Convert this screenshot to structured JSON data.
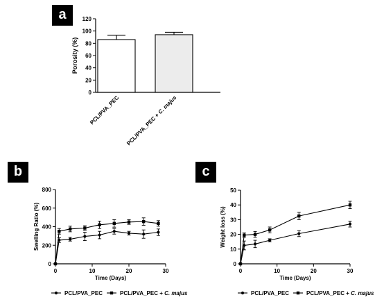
{
  "panels": {
    "a": "a",
    "b": "b",
    "c": "c"
  },
  "chart_data": [
    {
      "panel": "a",
      "type": "bar",
      "title": "",
      "xlabel": "",
      "ylabel": "Porosity (%)",
      "categories": [
        "PCL/PVA_PEC",
        "PCL/PVA_PEC + C. majus"
      ],
      "values": [
        86,
        94
      ],
      "errors": [
        7,
        4
      ],
      "bar_colors": [
        "#ffffff",
        "#ececec"
      ],
      "ylim": [
        0,
        120
      ],
      "yticks": [
        "0",
        "20",
        "40",
        "60",
        "80",
        "100",
        "120"
      ]
    },
    {
      "panel": "b",
      "type": "line",
      "title": "",
      "xlabel": "Time (Days)",
      "ylabel": "Swelling Ratio (%)",
      "xlim": [
        0,
        30
      ],
      "ylim": [
        0,
        800
      ],
      "xticks": [
        "0",
        "10",
        "20",
        "30"
      ],
      "yticks": [
        "0",
        "200",
        "400",
        "600",
        "800"
      ],
      "legend_position": "bottom",
      "series": [
        {
          "name": "PCL/PVA_PEC",
          "marker": "circle",
          "x": [
            0,
            1,
            4,
            8,
            12,
            16,
            20,
            24,
            28
          ],
          "y": [
            0,
            255,
            265,
            295,
            310,
            350,
            330,
            320,
            340
          ],
          "err": [
            0,
            25,
            20,
            45,
            40,
            30,
            20,
            45,
            35
          ]
        },
        {
          "name": "PCL/PVA_PEC + C. majus",
          "marker": "square",
          "x": [
            0,
            1,
            4,
            8,
            12,
            16,
            20,
            24,
            28
          ],
          "y": [
            0,
            350,
            375,
            385,
            420,
            435,
            450,
            455,
            435
          ],
          "err": [
            0,
            30,
            30,
            25,
            40,
            40,
            25,
            40,
            30
          ]
        }
      ]
    },
    {
      "panel": "c",
      "type": "line",
      "title": "",
      "xlabel": "Time (Days)",
      "ylabel": "Weight loss (%)",
      "xlim": [
        0,
        30
      ],
      "ylim": [
        0,
        50
      ],
      "xticks": [
        "0",
        "10",
        "20",
        "30"
      ],
      "yticks": [
        "0",
        "10",
        "20",
        "30",
        "40",
        "50"
      ],
      "legend_position": "bottom",
      "series": [
        {
          "name": "PCL/PVA_PEC",
          "marker": "circle",
          "x": [
            0,
            1,
            4,
            8,
            16,
            30
          ],
          "y": [
            0,
            12.5,
            13.5,
            16,
            20.5,
            27
          ],
          "err": [
            0,
            3,
            2.5,
            1,
            2,
            2
          ]
        },
        {
          "name": "PCL/PVA_PEC + C. majus",
          "marker": "square",
          "x": [
            0,
            1,
            4,
            8,
            16,
            30
          ],
          "y": [
            0,
            19.5,
            20,
            23,
            32.5,
            40
          ],
          "err": [
            0,
            1.5,
            2,
            2,
            2.5,
            2.5
          ]
        }
      ]
    }
  ]
}
